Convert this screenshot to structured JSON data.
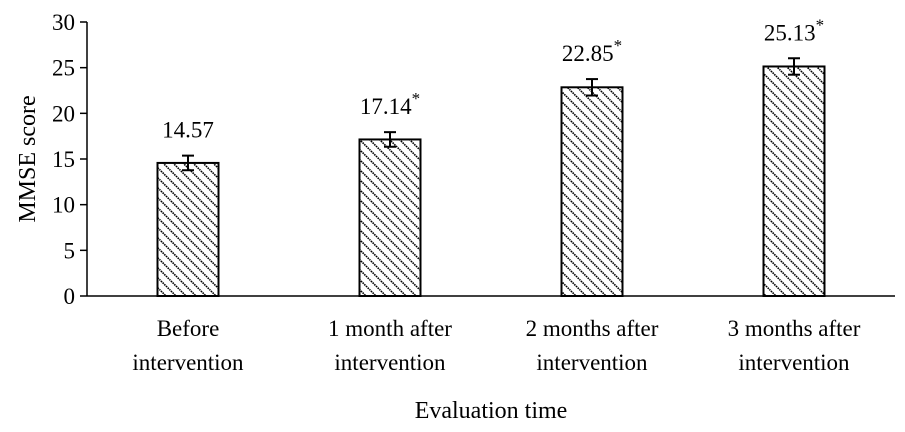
{
  "chart_data": {
    "type": "bar",
    "title": "",
    "xlabel": "Evaluation time",
    "ylabel": "MMSE score",
    "ylim": [
      0,
      30
    ],
    "yticks": [
      "0",
      "5",
      "10",
      "15",
      "20",
      "25",
      "30"
    ],
    "categories": [
      [
        "Before",
        "intervention"
      ],
      [
        "1 month after",
        "intervention"
      ],
      [
        "2 months after",
        "intervention"
      ],
      [
        "3 months after",
        "intervention"
      ]
    ],
    "values": [
      14.57,
      17.14,
      22.85,
      25.13
    ],
    "value_labels": [
      "14.57",
      "17.14",
      "22.85",
      "25.13"
    ],
    "error": [
      0.8,
      0.8,
      0.9,
      0.9
    ],
    "significance": [
      "",
      "*",
      "*",
      "*"
    ],
    "bar_fill": "diagonal-hatch",
    "grid": false,
    "colors": {
      "bar_stroke": "#000000",
      "hatch": "#000000",
      "background": "#ffffff"
    }
  }
}
